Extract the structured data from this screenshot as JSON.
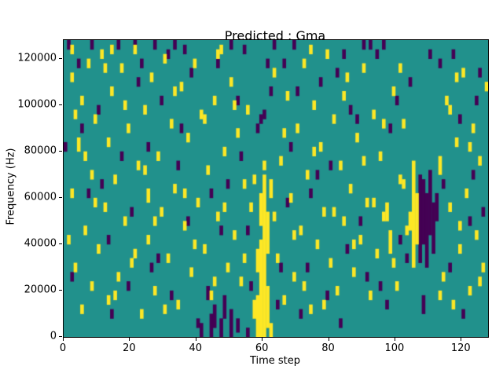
{
  "chart_data": {
    "type": "heatmap",
    "title": "Predicted : Gma",
    "xlabel": "Time step",
    "ylabel": "Frequency (Hz)",
    "x_range": [
      0,
      128
    ],
    "y_range": [
      0,
      128000
    ],
    "grid_size": {
      "time_steps": 128,
      "freq_bins": 64,
      "freq_bin_hz": 2000
    },
    "xticks": [
      0,
      20,
      40,
      60,
      80,
      100,
      120
    ],
    "xtick_labels": [
      "0",
      "20",
      "40",
      "60",
      "80",
      "100",
      "120"
    ],
    "yticks": [
      0,
      20000,
      40000,
      60000,
      80000,
      100000,
      120000
    ],
    "ytick_labels": [
      "0",
      "20000",
      "40000",
      "60000",
      "80000",
      "100000",
      "120000"
    ],
    "legend": "none",
    "grid": "off",
    "colors": {
      "background": "#21918c",
      "high": "#fde725",
      "low": "#440154",
      "axes": "#000000",
      "figure_bg": "#ffffff"
    },
    "cells_note": "runs are [time_step, freq_bin_start, freq_bin_end]; freq bin = 2000 Hz, bin 0 at bottom",
    "cells": {
      "high_runs": [
        [
          2,
          55,
          56
        ],
        [
          2,
          30,
          31
        ],
        [
          3,
          14,
          15
        ],
        [
          4,
          40,
          42
        ],
        [
          5,
          5,
          6
        ],
        [
          5,
          50,
          51
        ],
        [
          6,
          22,
          23
        ],
        [
          7,
          58,
          59
        ],
        [
          8,
          34,
          35
        ],
        [
          8,
          10,
          11
        ],
        [
          9,
          46,
          47
        ],
        [
          10,
          18,
          19
        ],
        [
          11,
          60,
          61
        ],
        [
          12,
          27,
          28
        ],
        [
          13,
          7,
          8
        ],
        [
          13,
          41,
          42
        ],
        [
          14,
          52,
          53
        ],
        [
          15,
          33,
          34
        ],
        [
          16,
          12,
          13
        ],
        [
          17,
          57,
          58
        ],
        [
          18,
          24,
          25
        ],
        [
          19,
          44,
          45
        ],
        [
          20,
          15,
          16
        ],
        [
          21,
          61,
          62
        ],
        [
          22,
          36,
          37
        ],
        [
          23,
          4,
          5
        ],
        [
          24,
          48,
          49
        ],
        [
          25,
          20,
          21
        ],
        [
          25,
          29,
          31
        ],
        [
          26,
          55,
          56
        ],
        [
          27,
          9,
          10
        ],
        [
          28,
          38,
          39
        ],
        [
          29,
          26,
          27
        ],
        [
          30,
          59,
          60
        ],
        [
          31,
          16,
          17
        ],
        [
          32,
          45,
          46
        ],
        [
          33,
          31,
          32
        ],
        [
          34,
          6,
          7
        ],
        [
          35,
          53,
          54
        ],
        [
          36,
          23,
          24
        ],
        [
          37,
          42,
          43
        ],
        [
          38,
          13,
          14
        ],
        [
          39,
          58,
          59
        ],
        [
          40,
          28,
          29
        ],
        [
          41,
          47,
          48
        ],
        [
          42,
          18,
          19
        ],
        [
          43,
          35,
          36
        ],
        [
          44,
          8,
          9
        ],
        [
          45,
          50,
          51
        ],
        [
          46,
          25,
          26
        ],
        [
          47,
          61,
          62
        ],
        [
          48,
          39,
          40
        ],
        [
          49,
          14,
          15
        ],
        [
          50,
          54,
          55
        ],
        [
          51,
          21,
          22
        ],
        [
          52,
          43,
          44
        ],
        [
          53,
          11,
          12
        ],
        [
          54,
          32,
          33
        ],
        [
          55,
          48,
          49
        ],
        [
          56,
          27,
          28
        ],
        [
          57,
          4,
          7
        ],
        [
          58,
          0,
          8
        ],
        [
          58,
          14,
          18
        ],
        [
          59,
          0,
          20
        ],
        [
          59,
          24,
          30
        ],
        [
          60,
          0,
          34
        ],
        [
          60,
          36,
          37
        ],
        [
          61,
          2,
          10
        ],
        [
          61,
          18,
          26
        ],
        [
          62,
          30,
          33
        ],
        [
          62,
          0,
          2
        ],
        [
          63,
          56,
          57
        ],
        [
          64,
          16,
          17
        ],
        [
          65,
          37,
          38
        ],
        [
          66,
          7,
          8
        ],
        [
          67,
          51,
          52
        ],
        [
          68,
          29,
          30
        ],
        [
          69,
          12,
          13
        ],
        [
          70,
          44,
          45
        ],
        [
          71,
          22,
          23
        ],
        [
          72,
          58,
          59
        ],
        [
          73,
          34,
          35
        ],
        [
          74,
          5,
          6
        ],
        [
          75,
          49,
          50
        ],
        [
          76,
          19,
          20
        ],
        [
          77,
          40,
          41
        ],
        [
          78,
          26,
          27
        ],
        [
          79,
          60,
          61
        ],
        [
          80,
          15,
          16
        ],
        [
          81,
          46,
          47
        ],
        [
          82,
          9,
          10
        ],
        [
          83,
          36,
          37
        ],
        [
          84,
          24,
          25
        ],
        [
          85,
          55,
          56
        ],
        [
          86,
          31,
          32
        ],
        [
          87,
          13,
          14
        ],
        [
          88,
          42,
          43
        ],
        [
          89,
          20,
          21
        ],
        [
          90,
          57,
          58
        ],
        [
          91,
          28,
          29
        ],
        [
          92,
          8,
          9
        ],
        [
          93,
          47,
          48
        ],
        [
          94,
          17,
          18
        ],
        [
          95,
          38,
          39
        ],
        [
          96,
          25,
          26
        ],
        [
          97,
          25,
          28
        ],
        [
          98,
          18,
          22
        ],
        [
          99,
          52,
          53
        ],
        [
          100,
          10,
          11
        ],
        [
          101,
          33,
          34
        ],
        [
          102,
          45,
          46
        ],
        [
          103,
          22,
          23
        ],
        [
          104,
          23,
          26
        ],
        [
          105,
          15,
          37
        ],
        [
          106,
          20,
          30
        ],
        [
          113,
          35,
          38
        ],
        [
          114,
          12,
          13
        ],
        [
          115,
          50,
          51
        ],
        [
          116,
          27,
          28
        ],
        [
          117,
          6,
          7
        ],
        [
          118,
          41,
          42
        ],
        [
          119,
          18,
          19
        ],
        [
          120,
          56,
          57
        ],
        [
          121,
          30,
          31
        ],
        [
          122,
          9,
          10
        ],
        [
          123,
          44,
          45
        ],
        [
          124,
          21,
          22
        ],
        [
          125,
          37,
          38
        ],
        [
          126,
          14,
          15
        ],
        [
          127,
          53,
          54
        ],
        [
          1,
          20,
          21
        ],
        [
          3,
          47,
          48
        ],
        [
          6,
          38,
          39
        ],
        [
          9,
          28,
          29
        ],
        [
          12,
          57,
          58
        ],
        [
          15,
          8,
          9
        ],
        [
          18,
          49,
          50
        ],
        [
          21,
          17,
          18
        ],
        [
          24,
          35,
          36
        ],
        [
          27,
          24,
          25
        ],
        [
          30,
          5,
          6
        ],
        [
          33,
          52,
          53
        ],
        [
          36,
          30,
          31
        ],
        [
          39,
          19,
          20
        ],
        [
          42,
          46,
          47
        ],
        [
          45,
          11,
          12
        ],
        [
          48,
          27,
          28
        ],
        [
          51,
          49,
          50
        ],
        [
          54,
          16,
          17
        ],
        [
          57,
          33,
          34
        ],
        [
          63,
          25,
          26
        ],
        [
          66,
          43,
          44
        ],
        [
          69,
          21,
          22
        ],
        [
          72,
          10,
          11
        ],
        [
          75,
          39,
          40
        ],
        [
          78,
          6,
          7
        ],
        [
          81,
          26,
          27
        ],
        [
          84,
          51,
          52
        ],
        [
          87,
          19,
          20
        ],
        [
          90,
          37,
          38
        ],
        [
          93,
          28,
          29
        ],
        [
          96,
          45,
          46
        ],
        [
          99,
          15,
          16
        ],
        [
          102,
          32,
          33
        ],
        [
          113,
          8,
          9
        ],
        [
          116,
          48,
          49
        ],
        [
          119,
          23,
          24
        ],
        [
          122,
          40,
          41
        ],
        [
          125,
          11,
          12
        ],
        [
          2,
          61,
          62
        ],
        [
          14,
          61,
          62
        ],
        [
          46,
          60,
          61
        ],
        [
          74,
          61,
          62
        ],
        [
          101,
          57,
          58
        ],
        [
          118,
          55,
          56
        ]
      ],
      "low_runs": [
        [
          1,
          62,
          63
        ],
        [
          4,
          58,
          59
        ],
        [
          7,
          30,
          31
        ],
        [
          10,
          48,
          49
        ],
        [
          13,
          20,
          21
        ],
        [
          16,
          62,
          63
        ],
        [
          19,
          10,
          11
        ],
        [
          22,
          54,
          55
        ],
        [
          25,
          40,
          41
        ],
        [
          28,
          16,
          17
        ],
        [
          31,
          60,
          61
        ],
        [
          34,
          36,
          37
        ],
        [
          37,
          24,
          25
        ],
        [
          40,
          2,
          3
        ],
        [
          41,
          0,
          2
        ],
        [
          43,
          8,
          10
        ],
        [
          44,
          0,
          4
        ],
        [
          45,
          2,
          6
        ],
        [
          47,
          0,
          3
        ],
        [
          48,
          4,
          8
        ],
        [
          50,
          0,
          5
        ],
        [
          52,
          1,
          3
        ],
        [
          55,
          0,
          1
        ],
        [
          46,
          58,
          59
        ],
        [
          49,
          32,
          33
        ],
        [
          52,
          50,
          51
        ],
        [
          55,
          22,
          23
        ],
        [
          58,
          44,
          45
        ],
        [
          61,
          58,
          59
        ],
        [
          64,
          6,
          7
        ],
        [
          67,
          28,
          29
        ],
        [
          70,
          52,
          53
        ],
        [
          73,
          14,
          15
        ],
        [
          76,
          34,
          35
        ],
        [
          79,
          8,
          9
        ],
        [
          82,
          56,
          57
        ],
        [
          85,
          18,
          19
        ],
        [
          88,
          46,
          47
        ],
        [
          91,
          12,
          13
        ],
        [
          94,
          60,
          61
        ],
        [
          97,
          6,
          7
        ],
        [
          100,
          50,
          51
        ],
        [
          103,
          16,
          17
        ],
        [
          107,
          16,
          34
        ],
        [
          108,
          20,
          33
        ],
        [
          109,
          15,
          30
        ],
        [
          110,
          22,
          35
        ],
        [
          111,
          18,
          28
        ],
        [
          112,
          25,
          30
        ],
        [
          108,
          5,
          8
        ],
        [
          113,
          58,
          59
        ],
        [
          116,
          14,
          15
        ],
        [
          119,
          46,
          47
        ],
        [
          122,
          24,
          25
        ],
        [
          125,
          56,
          57
        ],
        [
          2,
          12,
          13
        ],
        [
          5,
          44,
          45
        ],
        [
          8,
          62,
          63
        ],
        [
          11,
          32,
          33
        ],
        [
          14,
          4,
          5
        ],
        [
          17,
          38,
          39
        ],
        [
          20,
          26,
          27
        ],
        [
          23,
          58,
          59
        ],
        [
          26,
          14,
          15
        ],
        [
          29,
          50,
          51
        ],
        [
          32,
          8,
          9
        ],
        [
          35,
          44,
          45
        ],
        [
          38,
          56,
          57
        ],
        [
          44,
          30,
          31
        ],
        [
          47,
          22,
          23
        ],
        [
          50,
          62,
          63
        ],
        [
          53,
          38,
          39
        ],
        [
          56,
          10,
          11
        ],
        [
          59,
          46,
          47
        ],
        [
          62,
          52,
          53
        ],
        [
          65,
          14,
          15
        ],
        [
          68,
          40,
          41
        ],
        [
          71,
          4,
          5
        ],
        [
          74,
          30,
          31
        ],
        [
          77,
          54,
          55
        ],
        [
          80,
          36,
          37
        ],
        [
          83,
          2,
          3
        ],
        [
          86,
          48,
          49
        ],
        [
          89,
          24,
          25
        ],
        [
          92,
          62,
          63
        ],
        [
          95,
          10,
          11
        ],
        [
          98,
          44,
          45
        ],
        [
          101,
          20,
          21
        ],
        [
          104,
          54,
          55
        ],
        [
          114,
          32,
          33
        ],
        [
          117,
          60,
          61
        ],
        [
          120,
          4,
          5
        ],
        [
          123,
          34,
          35
        ],
        [
          126,
          26,
          27
        ],
        [
          0,
          40,
          41
        ],
        [
          33,
          62,
          63
        ],
        [
          60,
          47,
          48
        ],
        [
          63,
          62,
          63
        ],
        [
          69,
          62,
          63
        ],
        [
          90,
          62,
          63
        ],
        [
          96,
          62,
          63
        ],
        [
          21,
          62,
          63
        ],
        [
          27,
          62,
          63
        ],
        [
          36,
          61,
          62
        ],
        [
          54,
          61,
          62
        ],
        [
          66,
          58,
          59
        ],
        [
          84,
          60,
          61
        ],
        [
          110,
          60,
          61
        ],
        [
          124,
          50,
          51
        ]
      ]
    }
  }
}
